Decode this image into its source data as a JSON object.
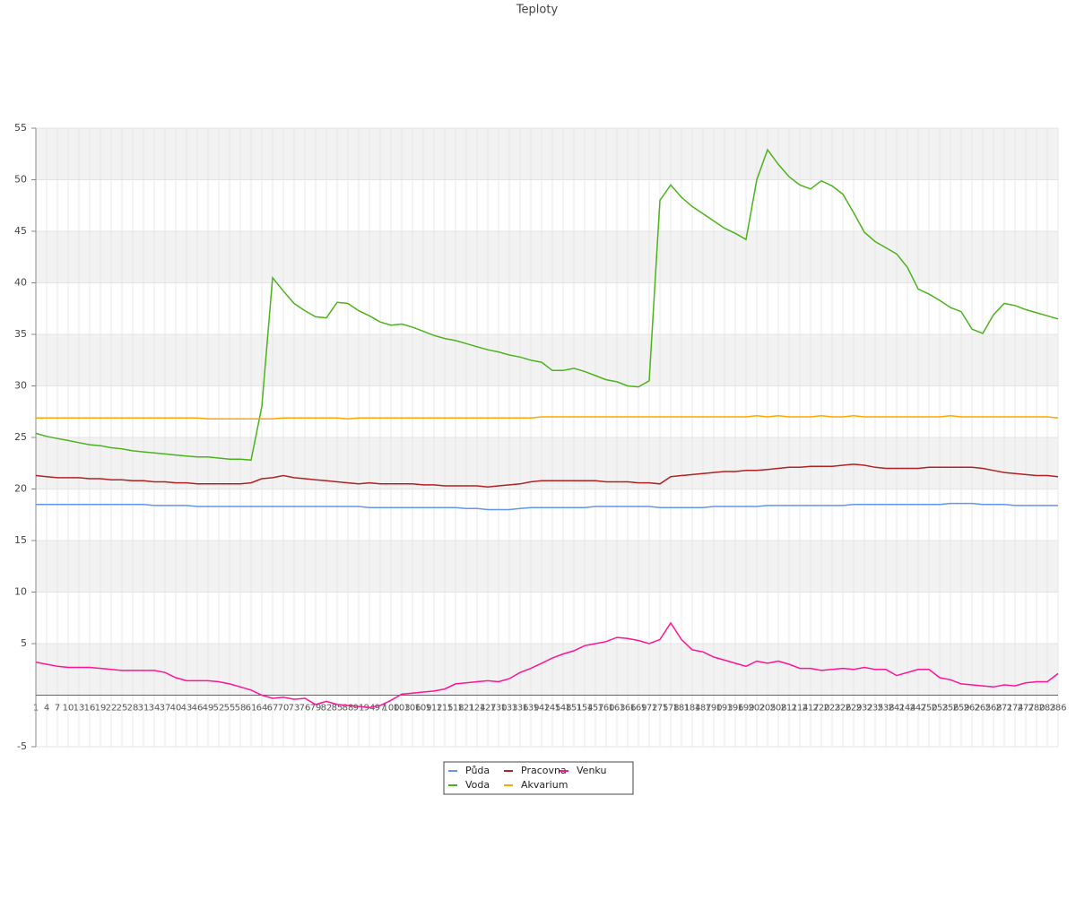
{
  "chart_data": {
    "type": "line",
    "title": "Teploty",
    "x": [
      1,
      4,
      7,
      10,
      13,
      16,
      19,
      22,
      25,
      28,
      31,
      34,
      37,
      40,
      43,
      46,
      49,
      52,
      55,
      58,
      61,
      64,
      67,
      70,
      73,
      76,
      79,
      82,
      85,
      88,
      91,
      94,
      97,
      100,
      103,
      106,
      109,
      112,
      115,
      118,
      121,
      124,
      127,
      130,
      133,
      136,
      139,
      142,
      145,
      148,
      151,
      154,
      157,
      160,
      163,
      166,
      169,
      172,
      175,
      178,
      181,
      184,
      187,
      190,
      193,
      196,
      199,
      202,
      205,
      208,
      211,
      214,
      217,
      220,
      223,
      226,
      229,
      232,
      235,
      238,
      241,
      244,
      247,
      250,
      253,
      256,
      259,
      262,
      265,
      268,
      271,
      274,
      277,
      280,
      283,
      286
    ],
    "xlim": [
      1,
      286
    ],
    "ylim": [
      -5,
      55
    ],
    "yticks": [
      -5,
      5,
      10,
      15,
      20,
      25,
      30,
      35,
      40,
      45,
      50,
      55
    ],
    "grid": true,
    "series": [
      {
        "name": "Půda",
        "color": "#6495ed",
        "values": [
          18.5,
          18.5,
          18.5,
          18.5,
          18.5,
          18.5,
          18.5,
          18.5,
          18.5,
          18.5,
          18.5,
          18.4,
          18.4,
          18.4,
          18.4,
          18.3,
          18.3,
          18.3,
          18.3,
          18.3,
          18.3,
          18.3,
          18.3,
          18.3,
          18.3,
          18.3,
          18.3,
          18.3,
          18.3,
          18.3,
          18.3,
          18.2,
          18.2,
          18.2,
          18.2,
          18.2,
          18.2,
          18.2,
          18.2,
          18.2,
          18.1,
          18.1,
          18.0,
          18.0,
          18.0,
          18.1,
          18.2,
          18.2,
          18.2,
          18.2,
          18.2,
          18.2,
          18.3,
          18.3,
          18.3,
          18.3,
          18.3,
          18.3,
          18.2,
          18.2,
          18.2,
          18.2,
          18.2,
          18.3,
          18.3,
          18.3,
          18.3,
          18.3,
          18.4,
          18.4,
          18.4,
          18.4,
          18.4,
          18.4,
          18.4,
          18.4,
          18.5,
          18.5,
          18.5,
          18.5,
          18.5,
          18.5,
          18.5,
          18.5,
          18.5,
          18.6,
          18.6,
          18.6,
          18.5,
          18.5,
          18.5,
          18.4,
          18.4,
          18.4,
          18.4,
          18.4
        ]
      },
      {
        "name": "Voda",
        "color": "#4cb31c",
        "values": [
          25.4,
          25.1,
          24.9,
          24.7,
          24.5,
          24.3,
          24.2,
          24.0,
          23.9,
          23.7,
          23.6,
          23.5,
          23.4,
          23.3,
          23.2,
          23.1,
          23.1,
          23.0,
          22.9,
          22.9,
          22.8,
          28.0,
          40.5,
          39.2,
          38.0,
          37.3,
          36.7,
          36.6,
          38.1,
          38.0,
          37.3,
          36.8,
          36.2,
          35.9,
          36.0,
          35.7,
          35.3,
          34.9,
          34.6,
          34.4,
          34.1,
          33.8,
          33.5,
          33.3,
          33.0,
          32.8,
          32.5,
          32.3,
          31.5,
          31.5,
          31.7,
          31.4,
          31.0,
          30.6,
          30.4,
          30.0,
          29.9,
          30.5,
          48.0,
          49.5,
          48.3,
          47.4,
          46.7,
          46.0,
          45.3,
          44.8,
          44.2,
          50.0,
          52.9,
          51.5,
          50.3,
          49.5,
          49.1,
          49.9,
          49.4,
          48.6,
          46.8,
          44.9,
          44.0,
          43.4,
          42.8,
          41.5,
          39.4,
          38.9,
          38.3,
          37.6,
          37.2,
          35.5,
          35.1,
          36.9,
          38.0,
          37.8,
          37.4,
          37.1,
          36.8,
          36.5
        ]
      },
      {
        "name": "Pracovna",
        "color": "#b22222",
        "values": [
          21.3,
          21.2,
          21.1,
          21.1,
          21.1,
          21.0,
          21.0,
          20.9,
          20.9,
          20.8,
          20.8,
          20.7,
          20.7,
          20.6,
          20.6,
          20.5,
          20.5,
          20.5,
          20.5,
          20.5,
          20.6,
          21.0,
          21.1,
          21.3,
          21.1,
          21.0,
          20.9,
          20.8,
          20.7,
          20.6,
          20.5,
          20.6,
          20.5,
          20.5,
          20.5,
          20.5,
          20.4,
          20.4,
          20.3,
          20.3,
          20.3,
          20.3,
          20.2,
          20.3,
          20.4,
          20.5,
          20.7,
          20.8,
          20.8,
          20.8,
          20.8,
          20.8,
          20.8,
          20.7,
          20.7,
          20.7,
          20.6,
          20.6,
          20.5,
          21.2,
          21.3,
          21.4,
          21.5,
          21.6,
          21.7,
          21.7,
          21.8,
          21.8,
          21.9,
          22.0,
          22.1,
          22.1,
          22.2,
          22.2,
          22.2,
          22.3,
          22.4,
          22.3,
          22.1,
          22.0,
          22.0,
          22.0,
          22.0,
          22.1,
          22.1,
          22.1,
          22.1,
          22.1,
          22.0,
          21.8,
          21.6,
          21.5,
          21.4,
          21.3,
          21.3,
          21.2
        ]
      },
      {
        "name": "Akvarium",
        "color": "#ffa500",
        "values": [
          26.9,
          26.9,
          26.9,
          26.9,
          26.9,
          26.9,
          26.9,
          26.9,
          26.9,
          26.9,
          26.9,
          26.9,
          26.9,
          26.9,
          26.9,
          26.9,
          26.8,
          26.8,
          26.8,
          26.8,
          26.8,
          26.8,
          26.8,
          26.9,
          26.9,
          26.9,
          26.9,
          26.9,
          26.9,
          26.8,
          26.9,
          26.9,
          26.9,
          26.9,
          26.9,
          26.9,
          26.9,
          26.9,
          26.9,
          26.9,
          26.9,
          26.9,
          26.9,
          26.9,
          26.9,
          26.9,
          26.9,
          27.0,
          27.0,
          27.0,
          27.0,
          27.0,
          27.0,
          27.0,
          27.0,
          27.0,
          27.0,
          27.0,
          27.0,
          27.0,
          27.0,
          27.0,
          27.0,
          27.0,
          27.0,
          27.0,
          27.0,
          27.1,
          27.0,
          27.1,
          27.0,
          27.0,
          27.0,
          27.1,
          27.0,
          27.0,
          27.1,
          27.0,
          27.0,
          27.0,
          27.0,
          27.0,
          27.0,
          27.0,
          27.0,
          27.1,
          27.0,
          27.0,
          27.0,
          27.0,
          27.0,
          27.0,
          27.0,
          27.0,
          27.0,
          26.9
        ]
      },
      {
        "name": "Venku",
        "color": "#ff1493",
        "values": [
          3.2,
          3.0,
          2.8,
          2.7,
          2.7,
          2.7,
          2.6,
          2.5,
          2.4,
          2.4,
          2.4,
          2.4,
          2.2,
          1.7,
          1.4,
          1.4,
          1.4,
          1.3,
          1.1,
          0.8,
          0.5,
          0,
          -0.3,
          -0.2,
          -0.4,
          -0.3,
          -0.9,
          -0.6,
          -0.9,
          -1.0,
          -1.1,
          -1.2,
          -1.0,
          -0.5,
          0.1,
          0.2,
          0.3,
          0.4,
          0.6,
          1.1,
          1.2,
          1.3,
          1.4,
          1.3,
          1.6,
          2.2,
          2.6,
          3.1,
          3.6,
          4.0,
          4.3,
          4.8,
          5.0,
          5.2,
          5.6,
          5.5,
          5.3,
          5.0,
          5.4,
          7.0,
          5.4,
          4.4,
          4.2,
          3.7,
          3.4,
          3.1,
          2.8,
          3.3,
          3.1,
          3.3,
          3.0,
          2.6,
          2.6,
          2.4,
          2.5,
          2.6,
          2.5,
          2.7,
          2.5,
          2.5,
          1.9,
          2.2,
          2.5,
          2.5,
          1.7,
          1.5,
          1.1,
          1.0,
          0.9,
          0.8,
          1.0,
          0.9,
          1.2,
          1.3,
          1.3,
          2.1
        ]
      }
    ]
  }
}
